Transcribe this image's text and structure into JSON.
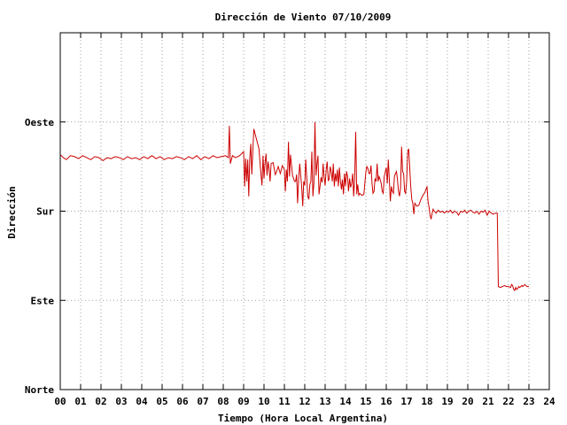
{
  "chart_data": {
    "type": "line",
    "title": "Dirección de Viento 07/10/2009",
    "xlabel": "Tiempo (Hora Local Argentina)",
    "ylabel": "Dirección",
    "xlim": [
      0,
      24
    ],
    "ylim": [
      0,
      360
    ],
    "x_ticks": [
      "00",
      "01",
      "02",
      "03",
      "04",
      "05",
      "06",
      "07",
      "08",
      "09",
      "10",
      "11",
      "12",
      "13",
      "14",
      "15",
      "16",
      "17",
      "18",
      "19",
      "20",
      "21",
      "22",
      "23",
      "24"
    ],
    "y_ticks": [
      {
        "value": 0,
        "label": "Norte"
      },
      {
        "value": 90,
        "label": "Este"
      },
      {
        "value": 180,
        "label": "Sur"
      },
      {
        "value": 270,
        "label": "Oeste"
      }
    ],
    "grid": true,
    "line_color": "#cc0000",
    "series": [
      {
        "values": [
          [
            0.0,
            237
          ],
          [
            0.15,
            234
          ],
          [
            0.3,
            232
          ],
          [
            0.5,
            236
          ],
          [
            0.7,
            235
          ],
          [
            0.9,
            233
          ],
          [
            1.1,
            236
          ],
          [
            1.3,
            234
          ],
          [
            1.5,
            232
          ],
          [
            1.7,
            235
          ],
          [
            1.9,
            234
          ],
          [
            2.1,
            231
          ],
          [
            2.3,
            234
          ],
          [
            2.5,
            233
          ],
          [
            2.7,
            235
          ],
          [
            2.9,
            234
          ],
          [
            3.1,
            232
          ],
          [
            3.3,
            235
          ],
          [
            3.5,
            233
          ],
          [
            3.7,
            234
          ],
          [
            3.9,
            232
          ],
          [
            4.1,
            235
          ],
          [
            4.3,
            233
          ],
          [
            4.5,
            236
          ],
          [
            4.7,
            233
          ],
          [
            4.9,
            235
          ],
          [
            5.1,
            232
          ],
          [
            5.3,
            234
          ],
          [
            5.5,
            233
          ],
          [
            5.7,
            235
          ],
          [
            5.9,
            234
          ],
          [
            6.1,
            232
          ],
          [
            6.3,
            235
          ],
          [
            6.5,
            233
          ],
          [
            6.7,
            236
          ],
          [
            6.9,
            232
          ],
          [
            7.1,
            235
          ],
          [
            7.3,
            233
          ],
          [
            7.5,
            236
          ],
          [
            7.7,
            234
          ],
          [
            7.9,
            235
          ],
          [
            8.1,
            236
          ],
          [
            8.25,
            234
          ],
          [
            8.3,
            266
          ],
          [
            8.35,
            228
          ],
          [
            8.45,
            236
          ],
          [
            8.6,
            234
          ],
          [
            8.8,
            236
          ],
          [
            9.0,
            240
          ],
          [
            9.05,
            205
          ],
          [
            9.1,
            233
          ],
          [
            9.15,
            210
          ],
          [
            9.2,
            232
          ],
          [
            9.25,
            195
          ],
          [
            9.3,
            233
          ],
          [
            9.35,
            248
          ],
          [
            9.4,
            217
          ],
          [
            9.5,
            263
          ],
          [
            9.6,
            255
          ],
          [
            9.75,
            243
          ],
          [
            9.85,
            218
          ],
          [
            9.9,
            206
          ],
          [
            9.95,
            236
          ],
          [
            10.0,
            213
          ],
          [
            10.05,
            228
          ],
          [
            10.1,
            238
          ],
          [
            10.15,
            216
          ],
          [
            10.2,
            230
          ],
          [
            10.25,
            222
          ],
          [
            10.3,
            210
          ],
          [
            10.35,
            228
          ],
          [
            10.45,
            229
          ],
          [
            10.55,
            217
          ],
          [
            10.6,
            219
          ],
          [
            10.7,
            225
          ],
          [
            10.8,
            218
          ],
          [
            10.9,
            226
          ],
          [
            11.0,
            222
          ],
          [
            11.05,
            200
          ],
          [
            11.1,
            222
          ],
          [
            11.15,
            210
          ],
          [
            11.2,
            250
          ],
          [
            11.25,
            215
          ],
          [
            11.3,
            237
          ],
          [
            11.4,
            216
          ],
          [
            11.5,
            210
          ],
          [
            11.55,
            210
          ],
          [
            11.6,
            217
          ],
          [
            11.65,
            188
          ],
          [
            11.7,
            212
          ],
          [
            11.75,
            228
          ],
          [
            11.85,
            205
          ],
          [
            11.9,
            185
          ],
          [
            11.95,
            210
          ],
          [
            12.0,
            206
          ],
          [
            12.05,
            232
          ],
          [
            12.15,
            195
          ],
          [
            12.2,
            192
          ],
          [
            12.25,
            207
          ],
          [
            12.3,
            210
          ],
          [
            12.35,
            240
          ],
          [
            12.4,
            195
          ],
          [
            12.45,
            208
          ],
          [
            12.5,
            270
          ],
          [
            12.55,
            216
          ],
          [
            12.6,
            228
          ],
          [
            12.65,
            236
          ],
          [
            12.7,
            197
          ],
          [
            12.8,
            214
          ],
          [
            12.85,
            209
          ],
          [
            12.9,
            228
          ],
          [
            12.95,
            215
          ],
          [
            13.0,
            206
          ],
          [
            13.05,
            222
          ],
          [
            13.1,
            230
          ],
          [
            13.15,
            211
          ],
          [
            13.2,
            212
          ],
          [
            13.25,
            225
          ],
          [
            13.3,
            220
          ],
          [
            13.35,
            210
          ],
          [
            13.4,
            228
          ],
          [
            13.45,
            205
          ],
          [
            13.5,
            218
          ],
          [
            13.55,
            210
          ],
          [
            13.6,
            222
          ],
          [
            13.65,
            205
          ],
          [
            13.7,
            224
          ],
          [
            13.75,
            210
          ],
          [
            13.8,
            202
          ],
          [
            13.85,
            212
          ],
          [
            13.9,
            197
          ],
          [
            13.95,
            218
          ],
          [
            14.0,
            205
          ],
          [
            14.05,
            220
          ],
          [
            14.1,
            215
          ],
          [
            14.15,
            200
          ],
          [
            14.2,
            213
          ],
          [
            14.25,
            204
          ],
          [
            14.3,
            208
          ],
          [
            14.35,
            218
          ],
          [
            14.4,
            195
          ],
          [
            14.45,
            212
          ],
          [
            14.5,
            260
          ],
          [
            14.55,
            197
          ],
          [
            14.6,
            207
          ],
          [
            14.65,
            196
          ],
          [
            14.7,
            198
          ],
          [
            14.8,
            196
          ],
          [
            14.9,
            197
          ],
          [
            15.0,
            220
          ],
          [
            15.05,
            225
          ],
          [
            15.1,
            223
          ],
          [
            15.15,
            218
          ],
          [
            15.2,
            218
          ],
          [
            15.25,
            226
          ],
          [
            15.3,
            208
          ],
          [
            15.35,
            198
          ],
          [
            15.4,
            200
          ],
          [
            15.45,
            213
          ],
          [
            15.5,
            210
          ],
          [
            15.55,
            228
          ],
          [
            15.6,
            210
          ],
          [
            15.65,
            215
          ],
          [
            15.7,
            212
          ],
          [
            15.75,
            208
          ],
          [
            15.8,
            200
          ],
          [
            15.85,
            198
          ],
          [
            15.9,
            215
          ],
          [
            16.0,
            224
          ],
          [
            16.05,
            208
          ],
          [
            16.1,
            232
          ],
          [
            16.15,
            213
          ],
          [
            16.2,
            190
          ],
          [
            16.25,
            205
          ],
          [
            16.3,
            200
          ],
          [
            16.35,
            198
          ],
          [
            16.4,
            215
          ],
          [
            16.45,
            218
          ],
          [
            16.5,
            220
          ],
          [
            16.55,
            212
          ],
          [
            16.6,
            200
          ],
          [
            16.65,
            195
          ],
          [
            16.7,
            203
          ],
          [
            16.75,
            245
          ],
          [
            16.8,
            220
          ],
          [
            16.85,
            218
          ],
          [
            16.9,
            200
          ],
          [
            16.95,
            198
          ],
          [
            17.0,
            210
          ],
          [
            17.05,
            240
          ],
          [
            17.1,
            243
          ],
          [
            17.15,
            225
          ],
          [
            17.2,
            205
          ],
          [
            17.25,
            192
          ],
          [
            17.3,
            188
          ],
          [
            17.35,
            177
          ],
          [
            17.4,
            188
          ],
          [
            17.5,
            185
          ],
          [
            17.6,
            186
          ],
          [
            17.7,
            192
          ],
          [
            17.8,
            196
          ],
          [
            17.9,
            199
          ],
          [
            18.0,
            205
          ],
          [
            18.05,
            190
          ],
          [
            18.1,
            184
          ],
          [
            18.15,
            176
          ],
          [
            18.2,
            172
          ],
          [
            18.25,
            178
          ],
          [
            18.3,
            182
          ],
          [
            18.35,
            180
          ],
          [
            18.45,
            178
          ],
          [
            18.55,
            181
          ],
          [
            18.65,
            179
          ],
          [
            18.75,
            180
          ],
          [
            18.85,
            178
          ],
          [
            18.95,
            180
          ],
          [
            19.05,
            179
          ],
          [
            19.15,
            181
          ],
          [
            19.25,
            178
          ],
          [
            19.35,
            180
          ],
          [
            19.45,
            179
          ],
          [
            19.55,
            176
          ],
          [
            19.65,
            180
          ],
          [
            19.75,
            179
          ],
          [
            19.85,
            181
          ],
          [
            19.95,
            178
          ],
          [
            20.05,
            180
          ],
          [
            20.15,
            181
          ],
          [
            20.25,
            179
          ],
          [
            20.35,
            178
          ],
          [
            20.45,
            180
          ],
          [
            20.55,
            177
          ],
          [
            20.65,
            180
          ],
          [
            20.75,
            179
          ],
          [
            20.85,
            181
          ],
          [
            20.95,
            176
          ],
          [
            21.05,
            180
          ],
          [
            21.15,
            178
          ],
          [
            21.25,
            177
          ],
          [
            21.35,
            178
          ],
          [
            21.45,
            178
          ],
          [
            21.5,
            104
          ],
          [
            21.6,
            103
          ],
          [
            21.7,
            104
          ],
          [
            21.8,
            105
          ],
          [
            21.9,
            104
          ],
          [
            22.0,
            104
          ],
          [
            22.1,
            103
          ],
          [
            22.15,
            106
          ],
          [
            22.2,
            105
          ],
          [
            22.25,
            101
          ],
          [
            22.3,
            100
          ],
          [
            22.35,
            103
          ],
          [
            22.4,
            101
          ],
          [
            22.45,
            102
          ],
          [
            22.5,
            104
          ],
          [
            22.55,
            103
          ],
          [
            22.6,
            104
          ],
          [
            22.65,
            105
          ],
          [
            22.7,
            104
          ],
          [
            22.8,
            106
          ],
          [
            22.9,
            104
          ],
          [
            23.0,
            104
          ]
        ]
      }
    ]
  }
}
